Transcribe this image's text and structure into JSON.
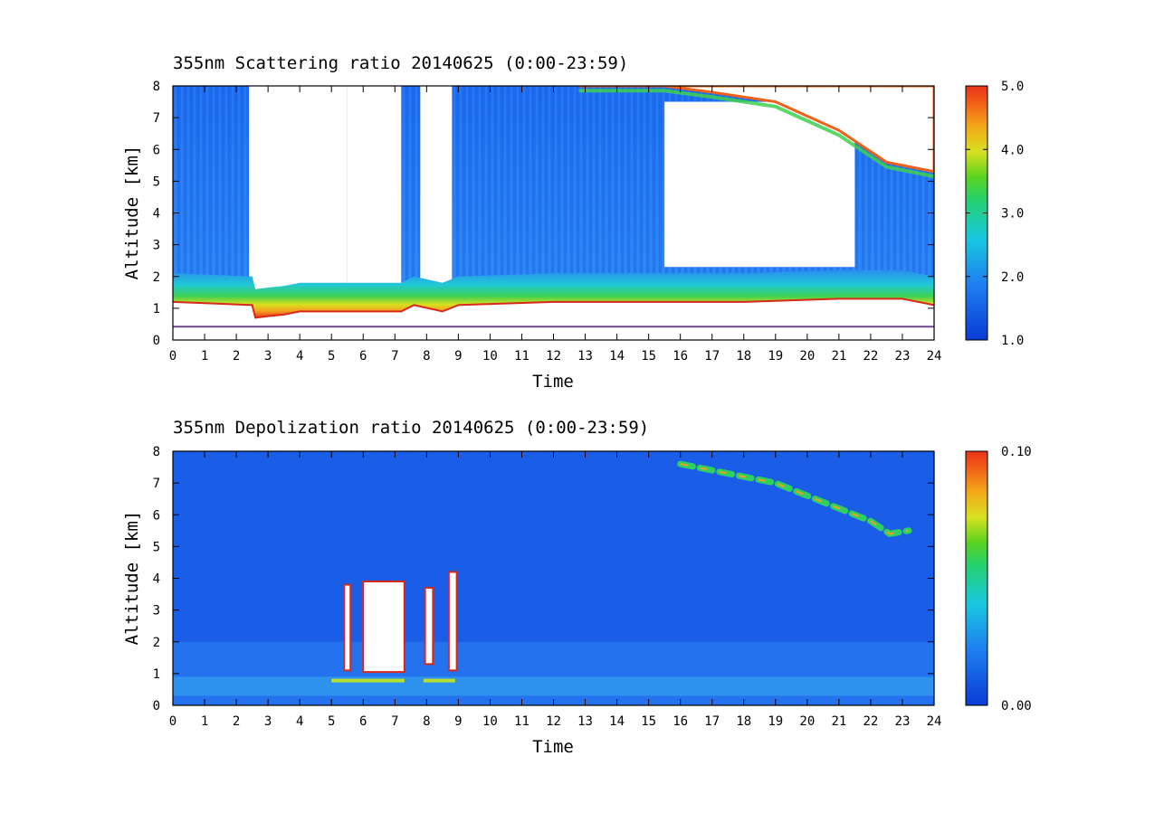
{
  "chart_data": [
    {
      "type": "heatmap",
      "title": "355nm Scattering ratio  20140625 (0:00-23:59)",
      "xlabel": "Time",
      "ylabel": "Altitude [km]",
      "xlim": [
        0,
        24
      ],
      "ylim": [
        0,
        8
      ],
      "x_ticks": [
        0,
        1,
        2,
        3,
        4,
        5,
        6,
        7,
        8,
        9,
        10,
        11,
        12,
        13,
        14,
        15,
        16,
        17,
        18,
        19,
        20,
        21,
        22,
        23,
        24
      ],
      "y_ticks": [
        0,
        1,
        2,
        3,
        4,
        5,
        6,
        7,
        8
      ],
      "colorbar": {
        "min": 1.0,
        "max": 5.0,
        "ticks": [
          {
            "value": 5.0,
            "label": "5.0"
          },
          {
            "value": 4.0,
            "label": "4.0"
          },
          {
            "value": 3.0,
            "label": "3.0"
          },
          {
            "value": 2.0,
            "label": "2.0"
          },
          {
            "value": 1.0,
            "label": "1.0"
          }
        ]
      },
      "features": {
        "boundary_layer_top_km": [
          [
            0,
            1.2
          ],
          [
            2.5,
            1.1
          ],
          [
            2.6,
            0.7
          ],
          [
            3.0,
            0.75
          ],
          [
            3.5,
            0.8
          ],
          [
            4.0,
            0.9
          ],
          [
            5.0,
            0.9
          ],
          [
            7.2,
            0.9
          ],
          [
            7.6,
            1.1
          ],
          [
            8.5,
            0.9
          ],
          [
            9.0,
            1.1
          ],
          [
            12,
            1.2
          ],
          [
            16,
            1.2
          ],
          [
            18,
            1.2
          ],
          [
            21,
            1.3
          ],
          [
            23,
            1.3
          ],
          [
            24,
            1.1
          ]
        ],
        "cloud_free_gaps": [
          {
            "x0": 2.4,
            "x1": 5.5,
            "y0": 1.0,
            "y1": 8.0
          },
          {
            "x0": 5.5,
            "x1": 7.2,
            "y0": 0.9,
            "y1": 8.0
          },
          {
            "x0": 7.8,
            "x1": 8.8,
            "y0": 0.9,
            "y1": 8.0
          },
          {
            "x0": 15.5,
            "x1": 21.5,
            "y0": 2.3,
            "y1": 7.5
          }
        ],
        "upper_cloud_edge_km": [
          [
            12.8,
            8.0
          ],
          [
            15.5,
            8.0
          ],
          [
            17.0,
            7.8
          ],
          [
            19.0,
            7.5
          ],
          [
            21.0,
            6.6
          ],
          [
            22.5,
            5.6
          ],
          [
            24.0,
            5.3
          ]
        ]
      }
    },
    {
      "type": "heatmap",
      "title": "355nm Depolization ratio  20140625 (0:00-23:59)",
      "xlabel": "Time",
      "ylabel": "Altitude [km]",
      "xlim": [
        0,
        24
      ],
      "ylim": [
        0,
        8
      ],
      "x_ticks": [
        0,
        1,
        2,
        3,
        4,
        5,
        6,
        7,
        8,
        9,
        10,
        11,
        12,
        13,
        14,
        15,
        16,
        17,
        18,
        19,
        20,
        21,
        22,
        23,
        24
      ],
      "y_ticks": [
        0,
        1,
        2,
        3,
        4,
        5,
        6,
        7,
        8
      ],
      "colorbar": {
        "min": 0.0,
        "max": 0.1,
        "ticks": [
          {
            "value": 0.1,
            "label": "0.10"
          },
          {
            "value": 0.0,
            "label": "0.00"
          }
        ]
      },
      "features": {
        "high_depol_cells": [
          {
            "x0": 5.4,
            "x1": 5.6,
            "y0": 1.1,
            "y1": 3.8
          },
          {
            "x0": 6.0,
            "x1": 7.3,
            "y0": 1.05,
            "y1": 3.9
          },
          {
            "x0": 7.95,
            "x1": 8.2,
            "y0": 1.3,
            "y1": 3.7
          },
          {
            "x0": 8.7,
            "x1": 8.95,
            "y0": 1.1,
            "y1": 4.2
          }
        ],
        "cirrus_depol_band_km": [
          [
            16.0,
            7.6
          ],
          [
            17.0,
            7.4
          ],
          [
            19.0,
            7.0
          ],
          [
            20.5,
            6.4
          ],
          [
            22.0,
            5.8
          ],
          [
            22.6,
            5.4
          ],
          [
            23.2,
            5.5
          ]
        ]
      }
    }
  ]
}
